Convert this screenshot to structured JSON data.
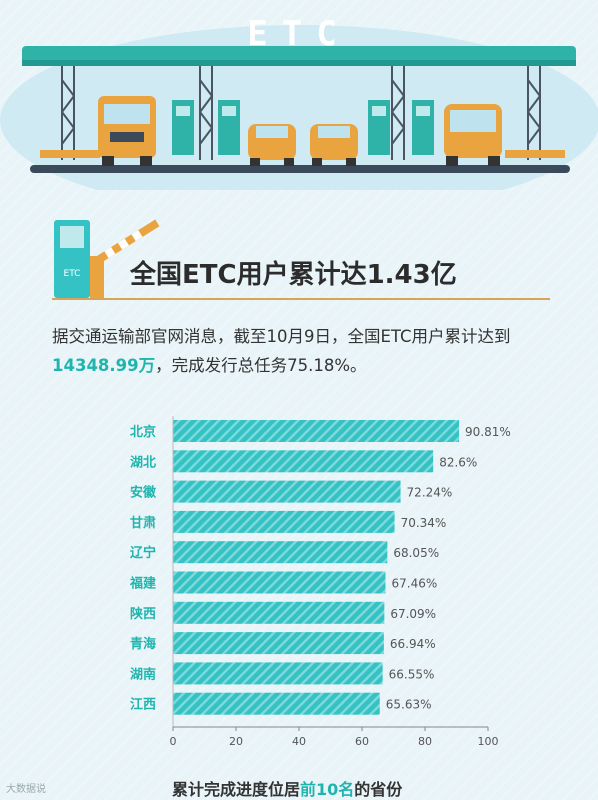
{
  "banner": {
    "title": "ETC"
  },
  "kiosk": {
    "label": "ETC"
  },
  "headline": "全国ETC用户累计达1.43亿",
  "intro": {
    "part1": "据交通运输部官网消息，截至10月9日，全国ETC用户累计达到",
    "highlight": "14348.99万",
    "part2": "，完成发行总任务75.18%。"
  },
  "caption": {
    "pre": "累计完成进度位居",
    "highlight": "前10名",
    "post": "的省份"
  },
  "watermark": "大数据说",
  "colors": {
    "bar": "#35c2c4",
    "accent": "#1fb5ae",
    "text": "#333333"
  },
  "chart_data": {
    "type": "bar",
    "orientation": "horizontal",
    "categories": [
      "北京",
      "湖北",
      "安徽",
      "甘肃",
      "辽宁",
      "福建",
      "陕西",
      "青海",
      "湖南",
      "江西"
    ],
    "values": [
      90.81,
      82.6,
      72.24,
      70.34,
      68.05,
      67.46,
      67.09,
      66.94,
      66.55,
      65.63
    ],
    "value_labels": [
      "90.81%",
      "82.6%",
      "72.24%",
      "70.34%",
      "68.05%",
      "67.46%",
      "67.09%",
      "66.94%",
      "66.55%",
      "65.63%"
    ],
    "xlim": [
      0,
      100
    ],
    "xticks": [
      0,
      20,
      40,
      60,
      80,
      100
    ],
    "grid": false,
    "title": "",
    "xlabel": "",
    "ylabel": ""
  }
}
